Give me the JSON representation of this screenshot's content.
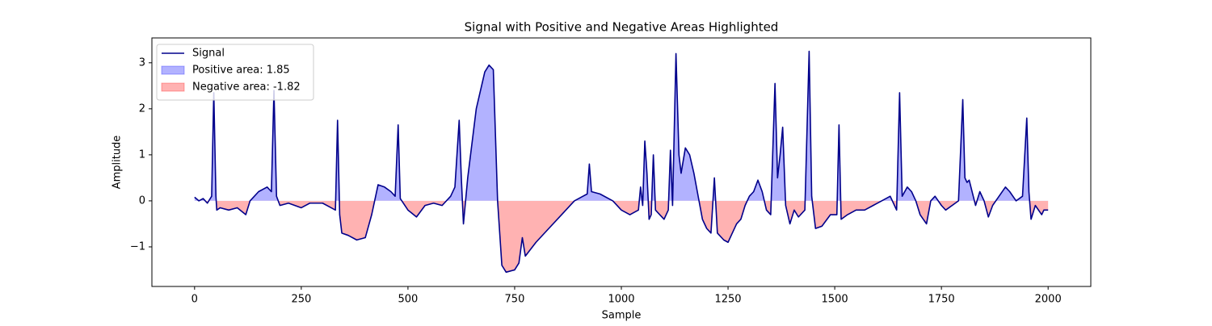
{
  "chart_data": {
    "type": "line",
    "title": "Signal with Positive and Negative Areas Highlighted",
    "xlabel": "Sample",
    "ylabel": "Amplitude",
    "xlim": [
      -100,
      2100
    ],
    "ylim": [
      -1.86,
      3.54
    ],
    "xticks": [
      0,
      250,
      500,
      750,
      1000,
      1250,
      1500,
      1750,
      2000
    ],
    "yticks": [
      {
        "value": -1,
        "label": "−1"
      },
      0,
      1,
      2,
      3
    ],
    "legend": "upper left",
    "x": [
      0,
      10,
      20,
      30,
      40,
      45,
      50,
      52,
      60,
      80,
      100,
      120,
      130,
      150,
      170,
      180,
      186,
      192,
      200,
      220,
      250,
      270,
      300,
      320,
      330,
      335,
      340,
      345,
      360,
      380,
      400,
      415,
      430,
      445,
      460,
      470,
      477,
      482,
      500,
      520,
      540,
      560,
      580,
      600,
      610,
      620,
      625,
      630,
      640,
      660,
      680,
      690,
      700,
      710,
      720,
      730,
      750,
      760,
      768,
      775,
      800,
      830,
      860,
      890,
      910,
      920,
      925,
      930,
      950,
      980,
      1000,
      1020,
      1040,
      1045,
      1050,
      1055,
      1060,
      1065,
      1070,
      1075,
      1080,
      1090,
      1100,
      1110,
      1115,
      1120,
      1128,
      1135,
      1140,
      1150,
      1160,
      1170,
      1180,
      1190,
      1200,
      1210,
      1218,
      1225,
      1240,
      1250,
      1260,
      1270,
      1280,
      1290,
      1300,
      1310,
      1320,
      1330,
      1340,
      1350,
      1360,
      1366,
      1372,
      1378,
      1385,
      1395,
      1405,
      1415,
      1430,
      1440,
      1446,
      1455,
      1470,
      1490,
      1505,
      1510,
      1515,
      1530,
      1550,
      1570,
      1590,
      1610,
      1630,
      1645,
      1652,
      1658,
      1670,
      1680,
      1690,
      1700,
      1715,
      1725,
      1735,
      1750,
      1760,
      1775,
      1790,
      1800,
      1805,
      1810,
      1815,
      1830,
      1840,
      1850,
      1860,
      1870,
      1885,
      1900,
      1910,
      1925,
      1940,
      1950,
      1955,
      1960,
      1970,
      1985,
      1990,
      2000
    ],
    "series": [
      {
        "name": "Signal",
        "color": "#00008b",
        "values": [
          0.08,
          0.0,
          0.05,
          -0.05,
          0.1,
          2.35,
          0.1,
          -0.2,
          -0.15,
          -0.2,
          -0.15,
          -0.3,
          0.0,
          0.2,
          0.3,
          0.2,
          2.4,
          0.1,
          -0.1,
          -0.05,
          -0.15,
          -0.05,
          -0.05,
          -0.15,
          -0.2,
          1.75,
          -0.3,
          -0.7,
          -0.75,
          -0.85,
          -0.8,
          -0.3,
          0.35,
          0.3,
          0.2,
          0.1,
          1.65,
          0.05,
          -0.2,
          -0.35,
          -0.1,
          -0.05,
          -0.1,
          0.1,
          0.3,
          1.75,
          0.5,
          -0.5,
          0.5,
          2.0,
          2.8,
          2.95,
          2.85,
          0.0,
          -1.4,
          -1.55,
          -1.5,
          -1.35,
          -0.8,
          -1.2,
          -0.9,
          -0.6,
          -0.3,
          0.0,
          0.1,
          0.15,
          0.8,
          0.2,
          0.15,
          0.0,
          -0.2,
          -0.3,
          -0.2,
          0.3,
          -0.1,
          1.3,
          0.6,
          -0.4,
          -0.3,
          1.0,
          -0.2,
          -0.3,
          -0.4,
          -0.2,
          1.1,
          -0.1,
          3.2,
          1.0,
          0.6,
          1.15,
          1.0,
          0.6,
          0.1,
          -0.4,
          -0.6,
          -0.7,
          0.5,
          -0.7,
          -0.85,
          -0.9,
          -0.7,
          -0.5,
          -0.4,
          -0.1,
          0.1,
          0.2,
          0.45,
          0.2,
          -0.2,
          -0.3,
          2.55,
          0.5,
          1.0,
          1.6,
          -0.1,
          -0.5,
          -0.2,
          -0.35,
          -0.2,
          3.25,
          0.1,
          -0.6,
          -0.55,
          -0.3,
          -0.3,
          1.65,
          -0.4,
          -0.3,
          -0.2,
          -0.2,
          -0.1,
          0.0,
          0.1,
          -0.2,
          2.35,
          0.1,
          0.3,
          0.2,
          0.0,
          -0.3,
          -0.5,
          0.0,
          0.1,
          -0.1,
          -0.2,
          -0.1,
          0.0,
          2.2,
          0.5,
          0.4,
          0.45,
          -0.1,
          0.2,
          0.0,
          -0.35,
          -0.1,
          0.1,
          0.3,
          0.2,
          0.0,
          0.1,
          1.8,
          0.2,
          -0.4,
          -0.1,
          -0.3,
          -0.2,
          -0.2
        ]
      }
    ],
    "areas": [
      {
        "name": "Positive area: 1.85",
        "color": "#0000ff",
        "side": "above"
      },
      {
        "name": "Negative area: -1.82",
        "color": "#ff0000",
        "side": "below"
      }
    ]
  }
}
